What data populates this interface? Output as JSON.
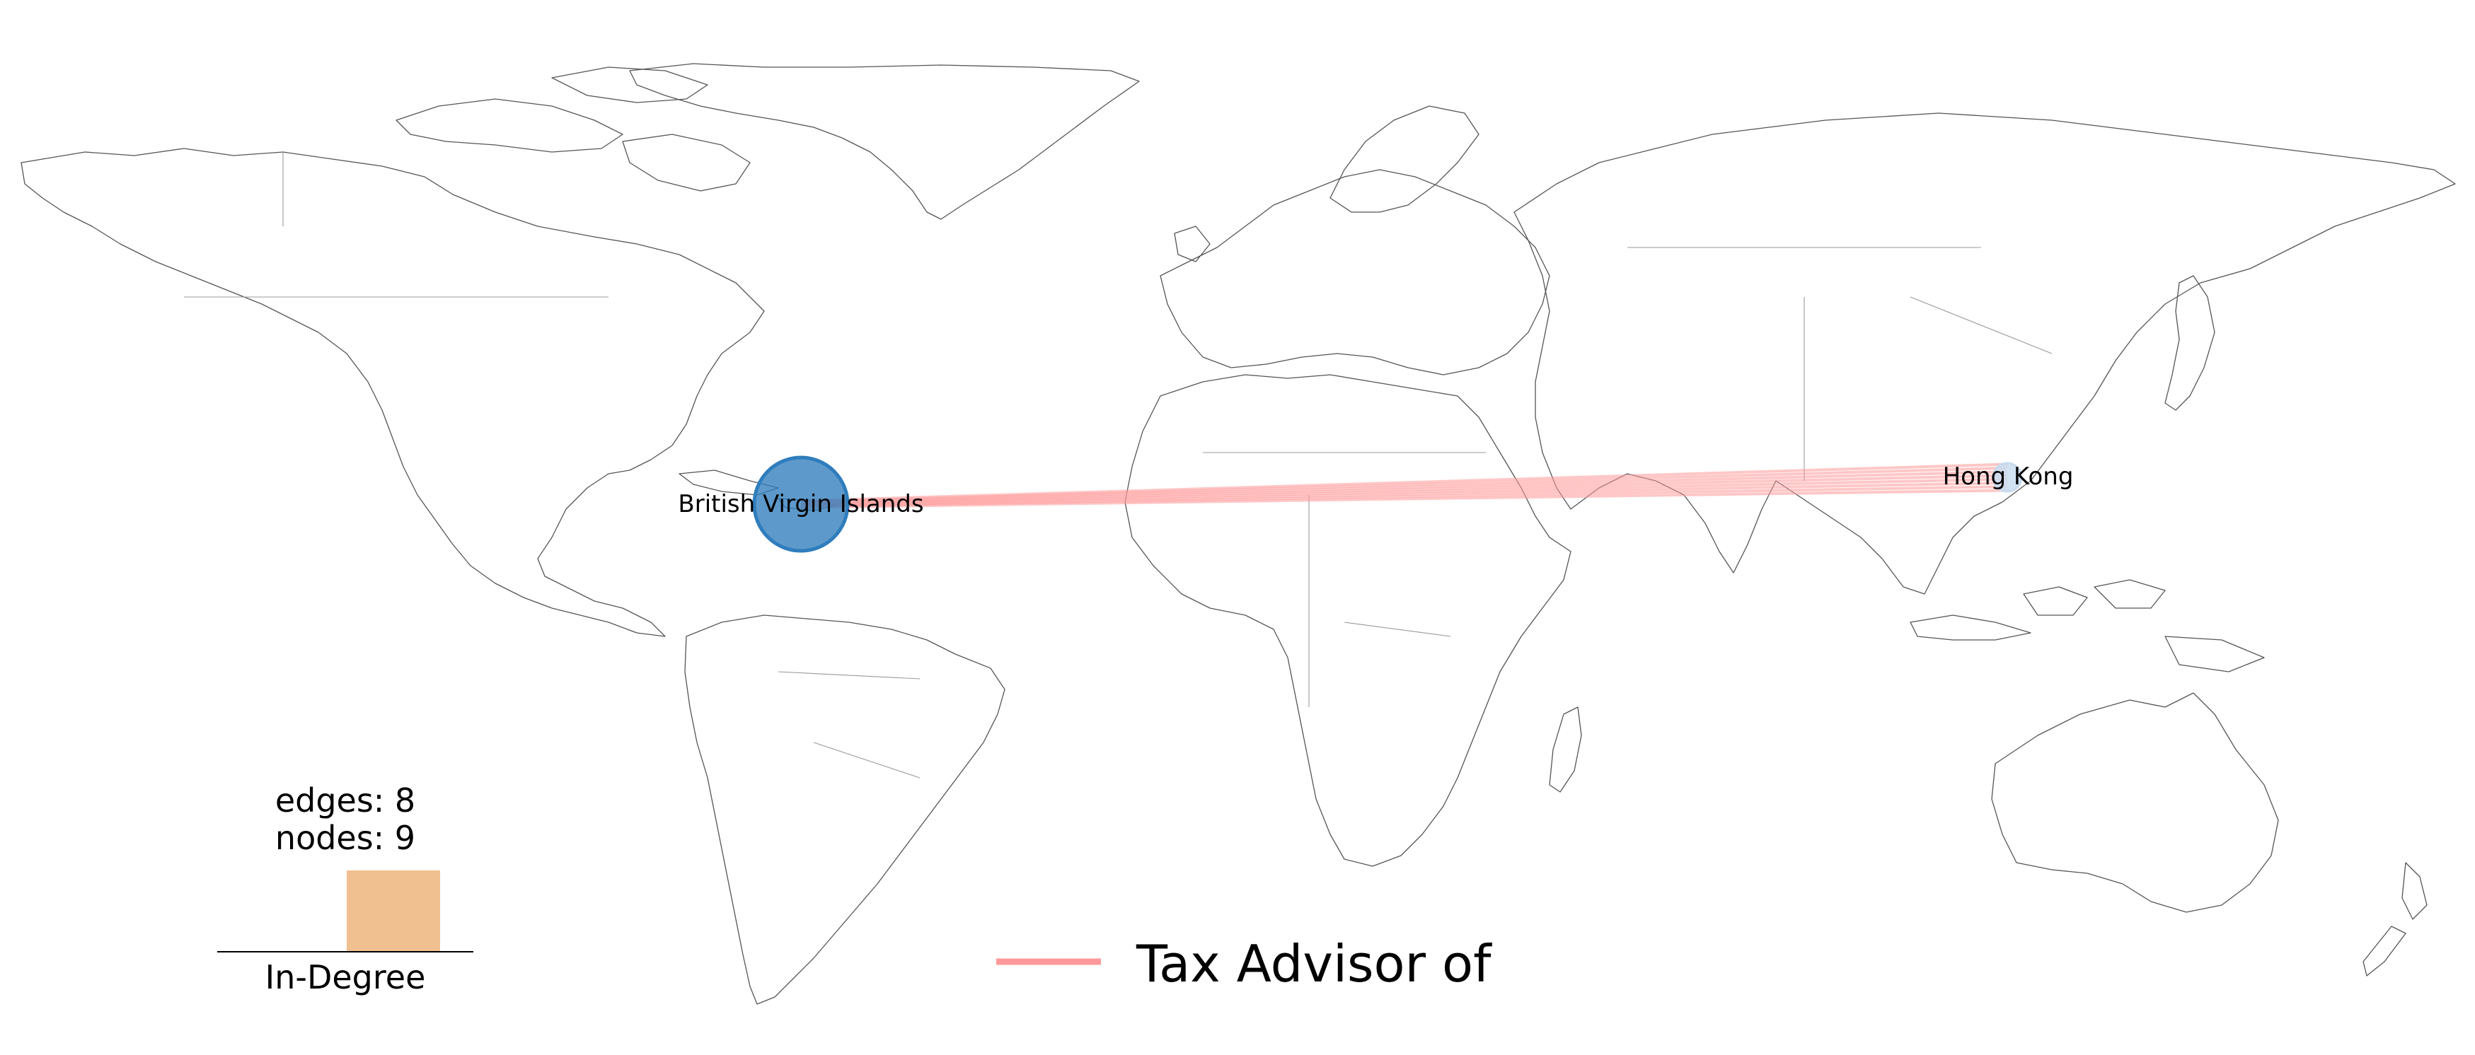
{
  "map": {
    "background": "#ffffff",
    "coastline_color": "#555555",
    "border_color": "#999999"
  },
  "nodes": [
    {
      "id": "bvi",
      "label": "British Virgin Islands",
      "lat": 18.4,
      "lon": -64.6,
      "in_degree": 8,
      "color": "#2f7dbd"
    },
    {
      "id": "hk",
      "label": "Hong Kong",
      "lat": 22.3,
      "lon": 114.2,
      "in_degree": 0,
      "color": "#c6dbef"
    }
  ],
  "edges": [
    {
      "source": "hk",
      "target": "bvi",
      "relation": "Tax Advisor of",
      "count": 8,
      "color": "#ff9999"
    }
  ],
  "stats": {
    "edges_label": "edges: 8",
    "nodes_label": "nodes: 9"
  },
  "histogram": {
    "label": "In-Degree",
    "bar_color": "#f0c090"
  },
  "legend": {
    "items": [
      {
        "label": "Tax Advisor of",
        "color": "#ff9999"
      }
    ]
  }
}
